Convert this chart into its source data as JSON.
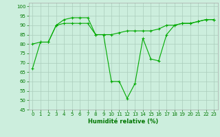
{
  "xlabel": "Humidité relative (%)",
  "background_color": "#cceedd",
  "grid_color": "#aaccbb",
  "line_color": "#00aa00",
  "tick_color": "#007700",
  "xlim": [
    -0.5,
    23.5
  ],
  "ylim": [
    45,
    102
  ],
  "yticks": [
    45,
    50,
    55,
    60,
    65,
    70,
    75,
    80,
    85,
    90,
    95,
    100
  ],
  "xticks": [
    0,
    1,
    2,
    3,
    4,
    5,
    6,
    7,
    8,
    9,
    10,
    11,
    12,
    13,
    14,
    15,
    16,
    17,
    18,
    19,
    20,
    21,
    22,
    23
  ],
  "line1_x": [
    0,
    1,
    2,
    3,
    4,
    5,
    6,
    7,
    8,
    9,
    10,
    11,
    12,
    13,
    14,
    15,
    16,
    17,
    18,
    19,
    20,
    21,
    22,
    23
  ],
  "line1_y": [
    67,
    81,
    81,
    90,
    93,
    94,
    94,
    94,
    85,
    85,
    60,
    60,
    51,
    59,
    83,
    72,
    71,
    85,
    90,
    91,
    91,
    92,
    93,
    93
  ],
  "line2_x": [
    0,
    1,
    2,
    3,
    4,
    5,
    6,
    7,
    8,
    9,
    10,
    11,
    12,
    13,
    14,
    15,
    16,
    17,
    18,
    19,
    20,
    21,
    22,
    23
  ],
  "line2_y": [
    80,
    81,
    81,
    90,
    91,
    91,
    91,
    91,
    85,
    85,
    85,
    86,
    87,
    87,
    87,
    87,
    88,
    90,
    90,
    91,
    91,
    92,
    93,
    93
  ],
  "xlabel_fontsize": 6,
  "tick_fontsize": 5,
  "linewidth": 0.8,
  "markersize": 3
}
